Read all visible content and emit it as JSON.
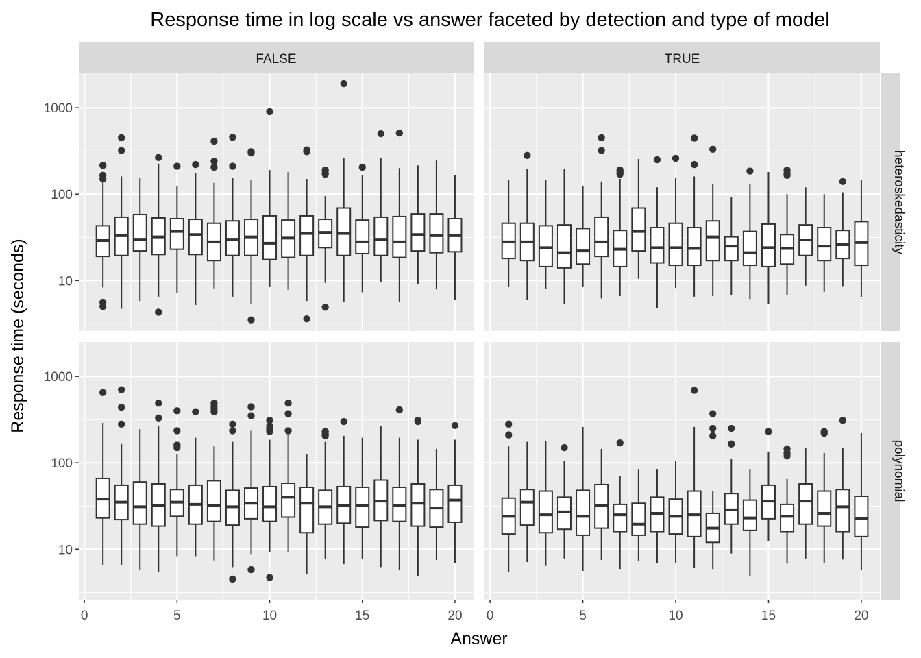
{
  "chart_data": {
    "type": "boxplot",
    "title": "Response time in log scale vs answer faceted by detection and type of model",
    "xlabel": "Answer",
    "ylabel": "Response time (seconds)",
    "y_scale": "log10",
    "ylim": [
      2.6,
      2500
    ],
    "xlim": [
      -0.3,
      21.0
    ],
    "x_ticks": [
      0,
      5,
      10,
      15,
      20
    ],
    "y_ticks": [
      10,
      100,
      1000
    ],
    "grid": true,
    "panel_background": "#ebebeb",
    "strip_background": "#d9d9d9",
    "col_facets": [
      "FALSE",
      "TRUE"
    ],
    "row_facets": [
      "heteroskedasticity",
      "polynomial"
    ],
    "panels": [
      {
        "detected": "FALSE",
        "model": "heteroskedasticity",
        "boxes": [
          {
            "x": 1,
            "low": 8.3,
            "q1": 19,
            "median": 29,
            "q3": 43,
            "high": 140,
            "outliers": [
              5,
              5.6,
              150,
              165,
              215
            ]
          },
          {
            "x": 2,
            "low": 4.7,
            "q1": 19.5,
            "median": 33,
            "q3": 54,
            "high": 160,
            "outliers": [
              320,
              450
            ]
          },
          {
            "x": 3,
            "low": 5.8,
            "q1": 22,
            "median": 30,
            "q3": 58,
            "high": 155,
            "outliers": []
          },
          {
            "x": 4,
            "low": 6.5,
            "q1": 20,
            "median": 32,
            "q3": 53,
            "high": 225,
            "outliers": [
              4.3,
              265
            ]
          },
          {
            "x": 5,
            "low": 7.2,
            "q1": 23,
            "median": 37,
            "q3": 52,
            "high": 125,
            "outliers": [
              210
            ]
          },
          {
            "x": 6,
            "low": 5.2,
            "q1": 20,
            "median": 34,
            "q3": 51,
            "high": 175,
            "outliers": [
              220
            ]
          },
          {
            "x": 7,
            "low": 8.1,
            "q1": 17,
            "median": 28,
            "q3": 46,
            "high": 135,
            "outliers": [
              205,
              240,
              410
            ]
          },
          {
            "x": 8,
            "low": 6.5,
            "q1": 19.5,
            "median": 30,
            "q3": 49,
            "high": 155,
            "outliers": [
              210,
              455
            ]
          },
          {
            "x": 9,
            "low": 5.3,
            "q1": 19.5,
            "median": 32,
            "q3": 51,
            "high": 145,
            "outliers": [
              3.5,
              300,
              310
            ]
          },
          {
            "x": 10,
            "low": 8.5,
            "q1": 17.5,
            "median": 27,
            "q3": 56,
            "high": 190,
            "outliers": [
              900
            ]
          },
          {
            "x": 11,
            "low": 7.8,
            "q1": 18.5,
            "median": 31,
            "q3": 50,
            "high": 180,
            "outliers": []
          },
          {
            "x": 12,
            "low": 5.8,
            "q1": 19.5,
            "median": 35,
            "q3": 56,
            "high": 150,
            "outliers": [
              3.6,
              310,
              325
            ]
          },
          {
            "x": 13,
            "low": 9.4,
            "q1": 24,
            "median": 36,
            "q3": 51,
            "high": 95,
            "outliers": [
              4.9,
              170,
              175,
              190
            ]
          },
          {
            "x": 14,
            "low": 5.7,
            "q1": 19.5,
            "median": 35,
            "q3": 69,
            "high": 260,
            "outliers": [
              1900
            ]
          },
          {
            "x": 15,
            "low": 7.3,
            "q1": 20.5,
            "median": 28,
            "q3": 50,
            "high": 165,
            "outliers": [
              205
            ]
          },
          {
            "x": 16,
            "low": 9.5,
            "q1": 19.5,
            "median": 30,
            "q3": 54,
            "high": 260,
            "outliers": [
              500
            ]
          },
          {
            "x": 17,
            "low": 5.7,
            "q1": 18.5,
            "median": 28,
            "q3": 55,
            "high": 200,
            "outliers": [
              510
            ]
          },
          {
            "x": 18,
            "low": 9.1,
            "q1": 22,
            "median": 34,
            "q3": 59,
            "high": 215,
            "outliers": []
          },
          {
            "x": 19,
            "low": 7.9,
            "q1": 21,
            "median": 33,
            "q3": 59,
            "high": 245,
            "outliers": []
          },
          {
            "x": 20,
            "low": 6,
            "q1": 21.5,
            "median": 33,
            "q3": 52,
            "high": 165,
            "outliers": []
          }
        ]
      },
      {
        "detected": "TRUE",
        "model": "heteroskedasticity",
        "boxes": [
          {
            "x": 1,
            "low": 8.5,
            "q1": 18,
            "median": 28,
            "q3": 46,
            "high": 145,
            "outliers": []
          },
          {
            "x": 2,
            "low": 6,
            "q1": 17,
            "median": 28,
            "q3": 46,
            "high": 195,
            "outliers": [
              280
            ]
          },
          {
            "x": 3,
            "low": 8,
            "q1": 14.5,
            "median": 24,
            "q3": 43,
            "high": 145,
            "outliers": []
          },
          {
            "x": 4,
            "low": 5.3,
            "q1": 14,
            "median": 21,
            "q3": 44,
            "high": 195,
            "outliers": []
          },
          {
            "x": 5,
            "low": 8.5,
            "q1": 15.5,
            "median": 22,
            "q3": 40,
            "high": 125,
            "outliers": []
          },
          {
            "x": 6,
            "low": 6.2,
            "q1": 19,
            "median": 28,
            "q3": 54,
            "high": 140,
            "outliers": [
              320,
              450
            ]
          },
          {
            "x": 7,
            "low": 6.6,
            "q1": 14.5,
            "median": 23,
            "q3": 38,
            "high": 150,
            "outliers": [
              170,
              180,
              190
            ]
          },
          {
            "x": 8,
            "low": 10.5,
            "q1": 22,
            "median": 37,
            "q3": 69,
            "high": 255,
            "outliers": []
          },
          {
            "x": 9,
            "low": 4.8,
            "q1": 16,
            "median": 24,
            "q3": 41,
            "high": 120,
            "outliers": [
              250
            ]
          },
          {
            "x": 10,
            "low": 8.2,
            "q1": 15,
            "median": 24,
            "q3": 46,
            "high": 155,
            "outliers": [
              260
            ]
          },
          {
            "x": 11,
            "low": 6.5,
            "q1": 15,
            "median": 23.5,
            "q3": 41,
            "high": 160,
            "outliers": [
              220,
              445
            ]
          },
          {
            "x": 12,
            "low": 6.6,
            "q1": 17,
            "median": 32,
            "q3": 49,
            "high": 130,
            "outliers": [
              330
            ]
          },
          {
            "x": 13,
            "low": 6.8,
            "q1": 17,
            "median": 25,
            "q3": 32,
            "high": 92,
            "outliers": []
          },
          {
            "x": 14,
            "low": 6.1,
            "q1": 15,
            "median": 21,
            "q3": 37,
            "high": 130,
            "outliers": [
              185
            ]
          },
          {
            "x": 15,
            "low": 5.4,
            "q1": 14.5,
            "median": 24,
            "q3": 45,
            "high": 180,
            "outliers": []
          },
          {
            "x": 16,
            "low": 6.8,
            "q1": 15.5,
            "median": 23.5,
            "q3": 34,
            "high": 100,
            "outliers": [
              165,
              175,
              190
            ]
          },
          {
            "x": 17,
            "low": 8.7,
            "q1": 19.5,
            "median": 29.5,
            "q3": 44,
            "high": 120,
            "outliers": []
          },
          {
            "x": 18,
            "low": 7.4,
            "q1": 17,
            "median": 25,
            "q3": 41,
            "high": 100,
            "outliers": []
          },
          {
            "x": 19,
            "low": 8.6,
            "q1": 18,
            "median": 26,
            "q3": 38,
            "high": 105,
            "outliers": [
              140
            ]
          },
          {
            "x": 20,
            "low": 6.4,
            "q1": 15,
            "median": 27.5,
            "q3": 48,
            "high": 145,
            "outliers": []
          }
        ]
      },
      {
        "detected": "FALSE",
        "model": "polynomial",
        "boxes": [
          {
            "x": 1,
            "low": 6.6,
            "q1": 23,
            "median": 38,
            "q3": 66,
            "high": 290,
            "outliers": [
              650
            ]
          },
          {
            "x": 2,
            "low": 6.6,
            "q1": 22,
            "median": 35,
            "q3": 55,
            "high": 165,
            "outliers": [
              280,
              440,
              700
            ]
          },
          {
            "x": 3,
            "low": 5.7,
            "q1": 19.5,
            "median": 31,
            "q3": 60,
            "high": 245,
            "outliers": []
          },
          {
            "x": 4,
            "low": 5.4,
            "q1": 18.5,
            "median": 32,
            "q3": 57,
            "high": 265,
            "outliers": [
              330,
              490
            ]
          },
          {
            "x": 5,
            "low": 8.3,
            "q1": 24,
            "median": 35,
            "q3": 49,
            "high": 125,
            "outliers": [
              150,
              160,
              235,
              400
            ]
          },
          {
            "x": 6,
            "low": 8.3,
            "q1": 19.5,
            "median": 33,
            "q3": 55,
            "high": 195,
            "outliers": [
              390
            ]
          },
          {
            "x": 7,
            "low": 7.4,
            "q1": 21,
            "median": 32,
            "q3": 62,
            "high": 155,
            "outliers": [
              390,
              420,
              450,
              490
            ]
          },
          {
            "x": 8,
            "low": 6.2,
            "q1": 19,
            "median": 31,
            "q3": 48,
            "high": 175,
            "outliers": [
              4.5,
              235,
              280
            ]
          },
          {
            "x": 9,
            "low": 8.8,
            "q1": 22.5,
            "median": 34,
            "q3": 51,
            "high": 235,
            "outliers": [
              5.8,
              350,
              445
            ]
          },
          {
            "x": 10,
            "low": 9.3,
            "q1": 21,
            "median": 31,
            "q3": 53,
            "high": 185,
            "outliers": [
              4.7,
              230,
              245,
              265,
              310
            ]
          },
          {
            "x": 11,
            "low": 9.2,
            "q1": 23.5,
            "median": 40,
            "q3": 58,
            "high": 215,
            "outliers": [
              235,
              370,
              490
            ]
          },
          {
            "x": 12,
            "low": 5.2,
            "q1": 15.5,
            "median": 34,
            "q3": 52,
            "high": 125,
            "outliers": []
          },
          {
            "x": 13,
            "low": 7.7,
            "q1": 19.5,
            "median": 31,
            "q3": 48,
            "high": 175,
            "outliers": [
              205,
              215,
              230
            ]
          },
          {
            "x": 14,
            "low": 6.7,
            "q1": 20,
            "median": 32,
            "q3": 53,
            "high": 205,
            "outliers": [
              300
            ]
          },
          {
            "x": 15,
            "low": 7.7,
            "q1": 18,
            "median": 32,
            "q3": 52,
            "high": 195,
            "outliers": []
          },
          {
            "x": 16,
            "low": 6.2,
            "q1": 21.5,
            "median": 36,
            "q3": 63,
            "high": 265,
            "outliers": []
          },
          {
            "x": 17,
            "low": 5.7,
            "q1": 21,
            "median": 32,
            "q3": 52,
            "high": 195,
            "outliers": [
              410
            ]
          },
          {
            "x": 18,
            "low": 4.9,
            "q1": 18.5,
            "median": 34,
            "q3": 57,
            "high": 185,
            "outliers": [
              300,
              310
            ]
          },
          {
            "x": 19,
            "low": 7.5,
            "q1": 18,
            "median": 30,
            "q3": 49,
            "high": 145,
            "outliers": []
          },
          {
            "x": 20,
            "low": 6.9,
            "q1": 20.5,
            "median": 37,
            "q3": 55,
            "high": 185,
            "outliers": [
              270
            ]
          }
        ]
      },
      {
        "detected": "TRUE",
        "model": "polynomial",
        "boxes": [
          {
            "x": 1,
            "low": 5.4,
            "q1": 15,
            "median": 24,
            "q3": 39,
            "high": 155,
            "outliers": [
              210,
              280
            ]
          },
          {
            "x": 2,
            "low": 7.1,
            "q1": 19,
            "median": 35,
            "q3": 49,
            "high": 175,
            "outliers": []
          },
          {
            "x": 3,
            "low": 6.4,
            "q1": 15.5,
            "median": 25,
            "q3": 47,
            "high": 180,
            "outliers": []
          },
          {
            "x": 4,
            "low": 7.8,
            "q1": 17,
            "median": 27,
            "q3": 40,
            "high": 105,
            "outliers": [
              150
            ]
          },
          {
            "x": 5,
            "low": 5.6,
            "q1": 14.5,
            "median": 24,
            "q3": 48,
            "high": 260,
            "outliers": []
          },
          {
            "x": 6,
            "low": 7.5,
            "q1": 17.5,
            "median": 32,
            "q3": 56,
            "high": 145,
            "outliers": []
          },
          {
            "x": 7,
            "low": 5.9,
            "q1": 16,
            "median": 25,
            "q3": 33,
            "high": 70,
            "outliers": [
              170
            ]
          },
          {
            "x": 8,
            "low": 7.3,
            "q1": 14.5,
            "median": 19.5,
            "q3": 34,
            "high": 85,
            "outliers": []
          },
          {
            "x": 9,
            "low": 6.9,
            "q1": 16,
            "median": 26,
            "q3": 40,
            "high": 85,
            "outliers": []
          },
          {
            "x": 10,
            "low": 6.9,
            "q1": 15,
            "median": 24,
            "q3": 38,
            "high": 105,
            "outliers": []
          },
          {
            "x": 11,
            "low": 6.1,
            "q1": 14,
            "median": 25,
            "q3": 47,
            "high": 260,
            "outliers": [
              690
            ]
          },
          {
            "x": 12,
            "low": 5.9,
            "q1": 12,
            "median": 17.5,
            "q3": 26,
            "high": 47,
            "outliers": [
              205,
              250,
              370
            ]
          },
          {
            "x": 13,
            "low": 8.9,
            "q1": 19.5,
            "median": 28.5,
            "q3": 44,
            "high": 110,
            "outliers": [
              165,
              250
            ]
          },
          {
            "x": 14,
            "low": 4.9,
            "q1": 16.5,
            "median": 23,
            "q3": 37,
            "high": 85,
            "outliers": []
          },
          {
            "x": 15,
            "low": 12.5,
            "q1": 22.5,
            "median": 36,
            "q3": 55,
            "high": 135,
            "outliers": [
              230
            ]
          },
          {
            "x": 16,
            "low": 6.8,
            "q1": 16,
            "median": 24,
            "q3": 33,
            "high": 65,
            "outliers": [
              120,
              130,
              145
            ]
          },
          {
            "x": 17,
            "low": 7.8,
            "q1": 19.5,
            "median": 36,
            "q3": 57,
            "high": 150,
            "outliers": []
          },
          {
            "x": 18,
            "low": 6.9,
            "q1": 18.5,
            "median": 26,
            "q3": 47,
            "high": 130,
            "outliers": [
              220,
              230
            ]
          },
          {
            "x": 19,
            "low": 7.6,
            "q1": 16,
            "median": 31,
            "q3": 49,
            "high": 150,
            "outliers": [
              310
            ]
          },
          {
            "x": 20,
            "low": 5.7,
            "q1": 14,
            "median": 22.5,
            "q3": 41,
            "high": 220,
            "outliers": []
          }
        ]
      }
    ]
  }
}
